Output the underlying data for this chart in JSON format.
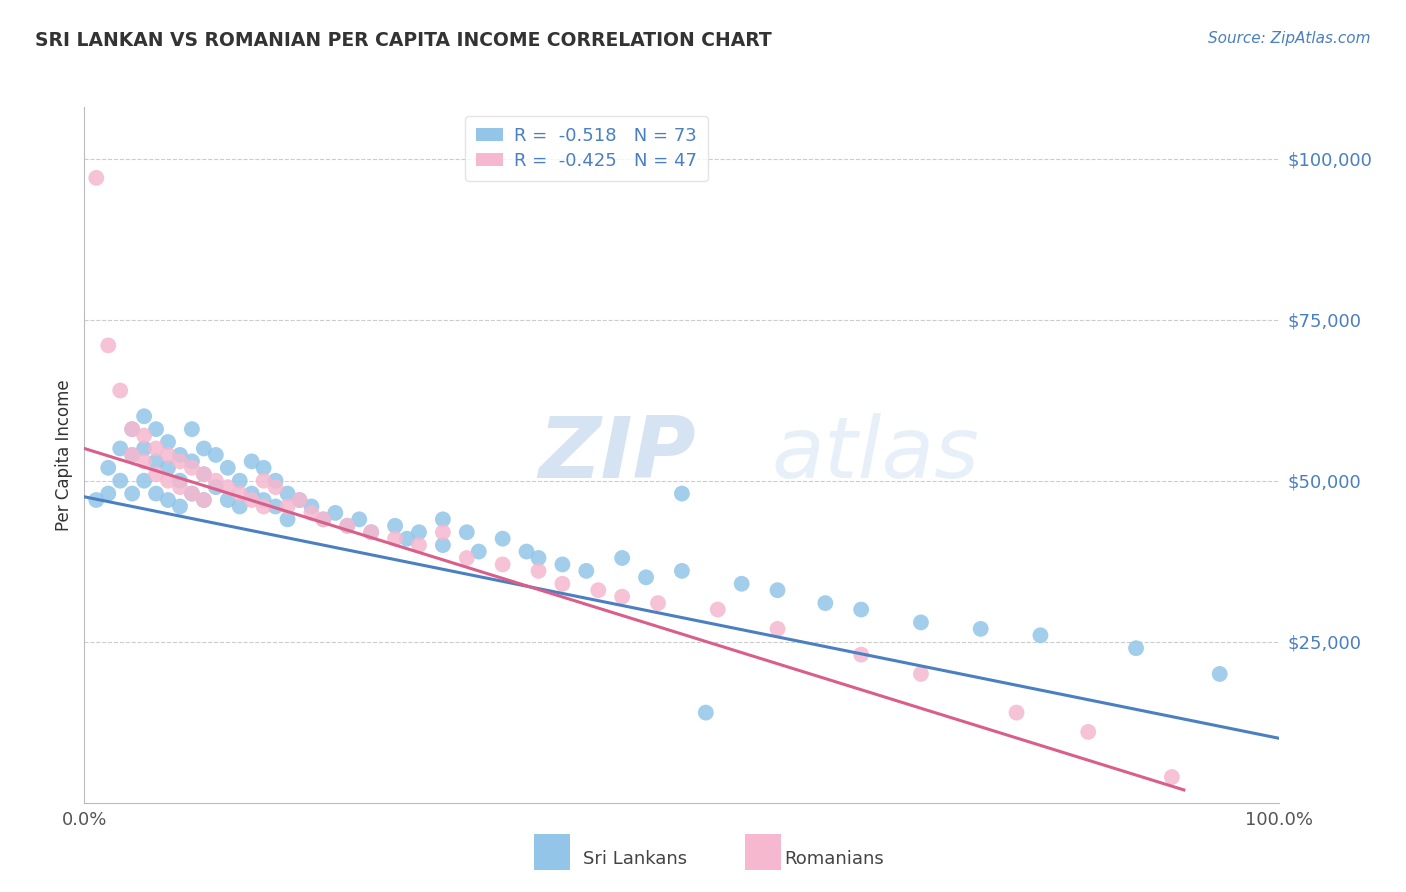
{
  "title": "SRI LANKAN VS ROMANIAN PER CAPITA INCOME CORRELATION CHART",
  "source_text": "Source: ZipAtlas.com",
  "ylabel": "Per Capita Income",
  "y_tick_labels": [
    "$25,000",
    "$50,000",
    "$75,000",
    "$100,000"
  ],
  "y_tick_values": [
    25000,
    50000,
    75000,
    100000
  ],
  "background_color": "#ffffff",
  "grid_color": "#cccccc",
  "sri_lankan_color": "#92c5e8",
  "romanian_color": "#f5b8cf",
  "sri_lankan_line_color": "#4a7fc1",
  "romanian_line_color": "#d95f8a",
  "text_color": "#333333",
  "legend_text_color": "#4a7fc1",
  "watermark_zip_color": "#c8ddf0",
  "watermark_atlas_color": "#d8e8f5",
  "R_sri": -0.518,
  "N_sri": 73,
  "R_rom": -0.425,
  "N_rom": 47,
  "sri_lankans_x": [
    0.01,
    0.02,
    0.02,
    0.03,
    0.03,
    0.04,
    0.04,
    0.04,
    0.05,
    0.05,
    0.05,
    0.06,
    0.06,
    0.06,
    0.07,
    0.07,
    0.07,
    0.08,
    0.08,
    0.08,
    0.09,
    0.09,
    0.09,
    0.1,
    0.1,
    0.1,
    0.11,
    0.11,
    0.12,
    0.12,
    0.13,
    0.13,
    0.14,
    0.14,
    0.15,
    0.15,
    0.16,
    0.16,
    0.17,
    0.17,
    0.18,
    0.19,
    0.2,
    0.21,
    0.22,
    0.23,
    0.24,
    0.26,
    0.27,
    0.28,
    0.3,
    0.3,
    0.32,
    0.33,
    0.35,
    0.37,
    0.38,
    0.4,
    0.42,
    0.45,
    0.47,
    0.5,
    0.52,
    0.55,
    0.58,
    0.5,
    0.62,
    0.65,
    0.7,
    0.75,
    0.8,
    0.88,
    0.95
  ],
  "sri_lankans_y": [
    47000,
    52000,
    48000,
    55000,
    50000,
    58000,
    54000,
    48000,
    60000,
    55000,
    50000,
    58000,
    53000,
    48000,
    56000,
    52000,
    47000,
    54000,
    50000,
    46000,
    58000,
    53000,
    48000,
    55000,
    51000,
    47000,
    54000,
    49000,
    52000,
    47000,
    50000,
    46000,
    53000,
    48000,
    52000,
    47000,
    50000,
    46000,
    48000,
    44000,
    47000,
    46000,
    44000,
    45000,
    43000,
    44000,
    42000,
    43000,
    41000,
    42000,
    44000,
    40000,
    42000,
    39000,
    41000,
    39000,
    38000,
    37000,
    36000,
    38000,
    35000,
    36000,
    14000,
    34000,
    33000,
    48000,
    31000,
    30000,
    28000,
    27000,
    26000,
    24000,
    20000
  ],
  "romanians_x": [
    0.01,
    0.02,
    0.03,
    0.04,
    0.04,
    0.05,
    0.05,
    0.06,
    0.06,
    0.07,
    0.07,
    0.08,
    0.08,
    0.09,
    0.09,
    0.1,
    0.1,
    0.11,
    0.12,
    0.13,
    0.14,
    0.15,
    0.15,
    0.16,
    0.17,
    0.18,
    0.19,
    0.2,
    0.22,
    0.24,
    0.26,
    0.28,
    0.3,
    0.32,
    0.35,
    0.38,
    0.4,
    0.43,
    0.45,
    0.48,
    0.53,
    0.58,
    0.65,
    0.7,
    0.78,
    0.84,
    0.91
  ],
  "romanians_y": [
    97000,
    71000,
    64000,
    58000,
    54000,
    57000,
    53000,
    55000,
    51000,
    54000,
    50000,
    53000,
    49000,
    52000,
    48000,
    51000,
    47000,
    50000,
    49000,
    48000,
    47000,
    50000,
    46000,
    49000,
    46000,
    47000,
    45000,
    44000,
    43000,
    42000,
    41000,
    40000,
    42000,
    38000,
    37000,
    36000,
    34000,
    33000,
    32000,
    31000,
    30000,
    27000,
    23000,
    20000,
    14000,
    11000,
    4000
  ],
  "xlim": [
    0,
    1.0
  ],
  "ylim": [
    0,
    108000
  ],
  "line_sri_x0": 0.0,
  "line_sri_x1": 1.0,
  "line_sri_y0": 47500,
  "line_sri_y1": 10000,
  "line_rom_x0": 0.0,
  "line_rom_x1": 0.92,
  "line_rom_y0": 55000,
  "line_rom_y1": 2000
}
